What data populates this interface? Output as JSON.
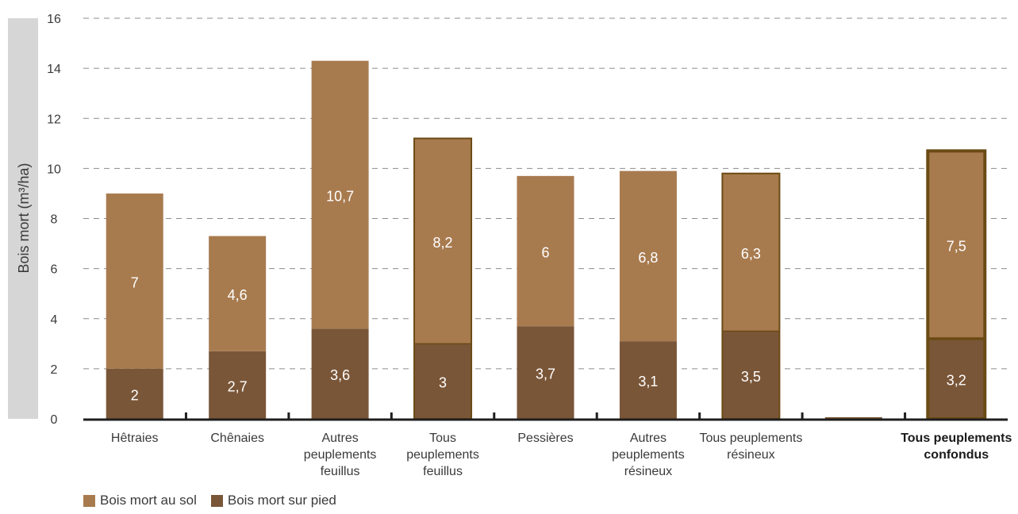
{
  "chart_data": {
    "type": "bar",
    "stacked": true,
    "ylabel": "Bois mort (m³/ha)",
    "ylim": [
      0,
      16
    ],
    "yticks": [
      "0",
      "2",
      "4",
      "6",
      "8",
      "10",
      "12",
      "14",
      "16"
    ],
    "grid": true,
    "categories": [
      [
        "Hêtraies"
      ],
      [
        "Chênaies"
      ],
      [
        "Autres",
        "peuplements",
        "feuillus"
      ],
      [
        "Tous",
        "peuplements",
        "feuillus"
      ],
      [
        "Pessières"
      ],
      [
        "Autres",
        "peuplements",
        "résineux"
      ],
      [
        "Tous peuplements",
        "résineux"
      ],
      [
        ""
      ],
      [
        "Tous peuplements",
        "confondus"
      ]
    ],
    "series": [
      {
        "name": "Bois mort sur pied",
        "color": "#7a5638",
        "values": [
          2,
          2.7,
          3.6,
          3,
          3.7,
          3.1,
          3.5,
          null,
          3.2
        ],
        "labels": [
          "2",
          "2,7",
          "3,6",
          "3",
          "3,7",
          "3,1",
          "3,5",
          "",
          "3,2"
        ]
      },
      {
        "name": "Bois mort au sol",
        "color": "#a87b4f",
        "values": [
          7,
          4.6,
          10.7,
          8.2,
          6,
          6.8,
          6.3,
          null,
          7.5
        ],
        "labels": [
          "7",
          "4,6",
          "10,7",
          "8,2",
          "6",
          "6,8",
          "6,3",
          "",
          "7,5"
        ]
      }
    ],
    "outlined": [
      false,
      false,
      false,
      true,
      false,
      false,
      true,
      false,
      true
    ],
    "bold_category": 8,
    "legend": {
      "position": "bottom-left",
      "entries": [
        {
          "label": "Bois mort au sol",
          "color": "#a87b4f"
        },
        {
          "label": "Bois mort sur pied",
          "color": "#7a5638"
        }
      ]
    }
  }
}
